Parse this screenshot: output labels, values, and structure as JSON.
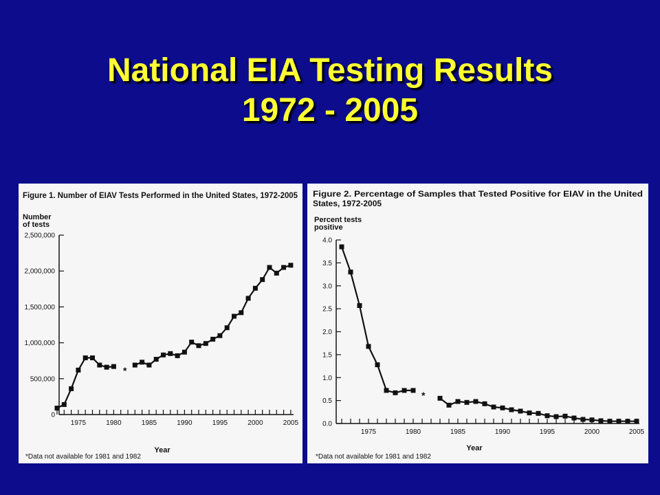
{
  "slide": {
    "title_line1": "National EIA Testing Results",
    "title_line2": "1972 - 2005"
  },
  "chart_data": [
    {
      "type": "line",
      "title": "Figure 1. Number of EIAV Tests Performed in the United States, 1972-2005",
      "ylabel_line1": "Number",
      "ylabel_line2": "of tests",
      "xlabel": "Year",
      "footnote": "*Data not available for 1981 and 1982",
      "gap_marker": "*",
      "ylim": [
        0,
        2500000
      ],
      "xlim": [
        1972,
        2005
      ],
      "y_ticks": [
        0,
        500000,
        1000000,
        1500000,
        2000000,
        2500000
      ],
      "y_tick_labels": [
        "0",
        "500,000",
        "1,000,000",
        "1,500,000",
        "2,000,000",
        "2,500,000"
      ],
      "x_tick_labels": [
        "1975",
        "1980",
        "1985",
        "1990",
        "1995",
        "2000",
        "2005"
      ],
      "series": [
        {
          "segments": [
            [
              [
                1972,
                90000
              ],
              [
                1973,
                140000
              ],
              [
                1974,
                360000
              ],
              [
                1975,
                620000
              ],
              [
                1976,
                790000
              ],
              [
                1977,
                790000
              ],
              [
                1978,
                690000
              ],
              [
                1979,
                660000
              ],
              [
                1980,
                670000
              ]
            ],
            [
              [
                1983,
                690000
              ],
              [
                1984,
                730000
              ],
              [
                1985,
                690000
              ],
              [
                1986,
                770000
              ],
              [
                1987,
                830000
              ],
              [
                1988,
                850000
              ],
              [
                1989,
                820000
              ],
              [
                1990,
                870000
              ],
              [
                1991,
                1010000
              ],
              [
                1992,
                960000
              ],
              [
                1993,
                990000
              ],
              [
                1994,
                1050000
              ],
              [
                1995,
                1100000
              ],
              [
                1996,
                1210000
              ],
              [
                1997,
                1370000
              ],
              [
                1998,
                1420000
              ],
              [
                1999,
                1620000
              ],
              [
                2000,
                1760000
              ],
              [
                2001,
                1880000
              ],
              [
                2002,
                2050000
              ],
              [
                2003,
                1970000
              ],
              [
                2004,
                2050000
              ],
              [
                2005,
                2080000
              ]
            ]
          ]
        }
      ]
    },
    {
      "type": "line",
      "title_line1": "Figure 2. Percentage of Samples that Tested Positive for EIAV in the United",
      "title_line2": "States, 1972-2005",
      "ylabel_line1": "Percent tests",
      "ylabel_line2": "positive",
      "xlabel": "Year",
      "footnote": "*Data not available for 1981 and 1982",
      "gap_marker": "*",
      "ylim": [
        0,
        4.0
      ],
      "xlim": [
        1972,
        2005
      ],
      "y_ticks": [
        0,
        0.5,
        1.0,
        1.5,
        2.0,
        2.5,
        3.0,
        3.5,
        4.0
      ],
      "y_tick_labels": [
        "0.0",
        "0.5",
        "1.0",
        "1.5",
        "2.0",
        "2.5",
        "3.0",
        "3.5",
        "4.0"
      ],
      "x_tick_labels": [
        "1975",
        "1980",
        "1985",
        "1990",
        "1995",
        "2000",
        "2005"
      ],
      "series": [
        {
          "segments": [
            [
              [
                1972,
                3.85
              ],
              [
                1973,
                3.3
              ],
              [
                1974,
                2.57
              ],
              [
                1975,
                1.68
              ],
              [
                1976,
                1.28
              ],
              [
                1977,
                0.72
              ],
              [
                1978,
                0.67
              ],
              [
                1979,
                0.72
              ],
              [
                1980,
                0.72
              ]
            ],
            [
              [
                1983,
                0.55
              ],
              [
                1984,
                0.4
              ],
              [
                1985,
                0.48
              ],
              [
                1986,
                0.46
              ],
              [
                1987,
                0.48
              ],
              [
                1988,
                0.43
              ],
              [
                1989,
                0.36
              ],
              [
                1990,
                0.34
              ],
              [
                1991,
                0.3
              ],
              [
                1992,
                0.27
              ],
              [
                1993,
                0.23
              ],
              [
                1994,
                0.22
              ],
              [
                1995,
                0.17
              ],
              [
                1996,
                0.15
              ],
              [
                1997,
                0.16
              ],
              [
                1998,
                0.12
              ],
              [
                1999,
                0.09
              ],
              [
                2000,
                0.08
              ],
              [
                2001,
                0.06
              ],
              [
                2002,
                0.05
              ],
              [
                2003,
                0.05
              ],
              [
                2004,
                0.05
              ],
              [
                2005,
                0.05
              ]
            ]
          ]
        }
      ]
    }
  ]
}
